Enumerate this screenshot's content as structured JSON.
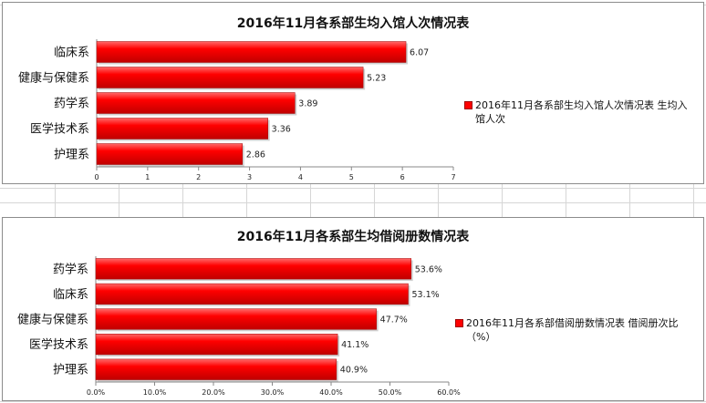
{
  "colors": {
    "bar": "#ff0000",
    "bar_dark": "#c00000",
    "bar_light": "#ff6a6a"
  },
  "chart_data": [
    {
      "type": "bar",
      "orientation": "horizontal",
      "title": "2016年11月各系部生均入馆人次情况表",
      "categories": [
        "临床系",
        "健康与保健系",
        "药学系",
        "医学技术系",
        "护理系"
      ],
      "values": [
        6.07,
        5.23,
        3.89,
        3.36,
        2.86
      ],
      "data_labels": [
        "6.07",
        "5.23",
        "3.89",
        "3.36",
        "2.86"
      ],
      "xlim": [
        0,
        7
      ],
      "ticks": [
        0,
        1,
        2,
        3,
        4,
        5,
        6,
        7
      ],
      "tick_labels": [
        "0",
        "1",
        "2",
        "3",
        "4",
        "5",
        "6",
        "7"
      ],
      "legend_lines": [
        "2016年11月各系部生均入馆人次情况表 生均入",
        "馆人次"
      ],
      "legend_position": "right"
    },
    {
      "type": "bar",
      "orientation": "horizontal",
      "title": "2016年11月各系部生均借阅册数情况表",
      "categories": [
        "药学系",
        "临床系",
        "健康与保健系",
        "医学技术系",
        "护理系"
      ],
      "values": [
        53.6,
        53.1,
        47.7,
        41.1,
        40.9
      ],
      "data_labels": [
        "53.6%",
        "53.1%",
        "47.7%",
        "41.1%",
        "40.9%"
      ],
      "xlim": [
        0,
        60
      ],
      "ticks": [
        0,
        10,
        20,
        30,
        40,
        50,
        60
      ],
      "tick_labels": [
        "0.0%",
        "10.0%",
        "20.0%",
        "30.0%",
        "40.0%",
        "50.0%",
        "60.0%"
      ],
      "legend_lines": [
        "2016年11月各系部借阅册数情况表 借阅册次比",
        "（%）"
      ],
      "legend_position": "right"
    }
  ]
}
